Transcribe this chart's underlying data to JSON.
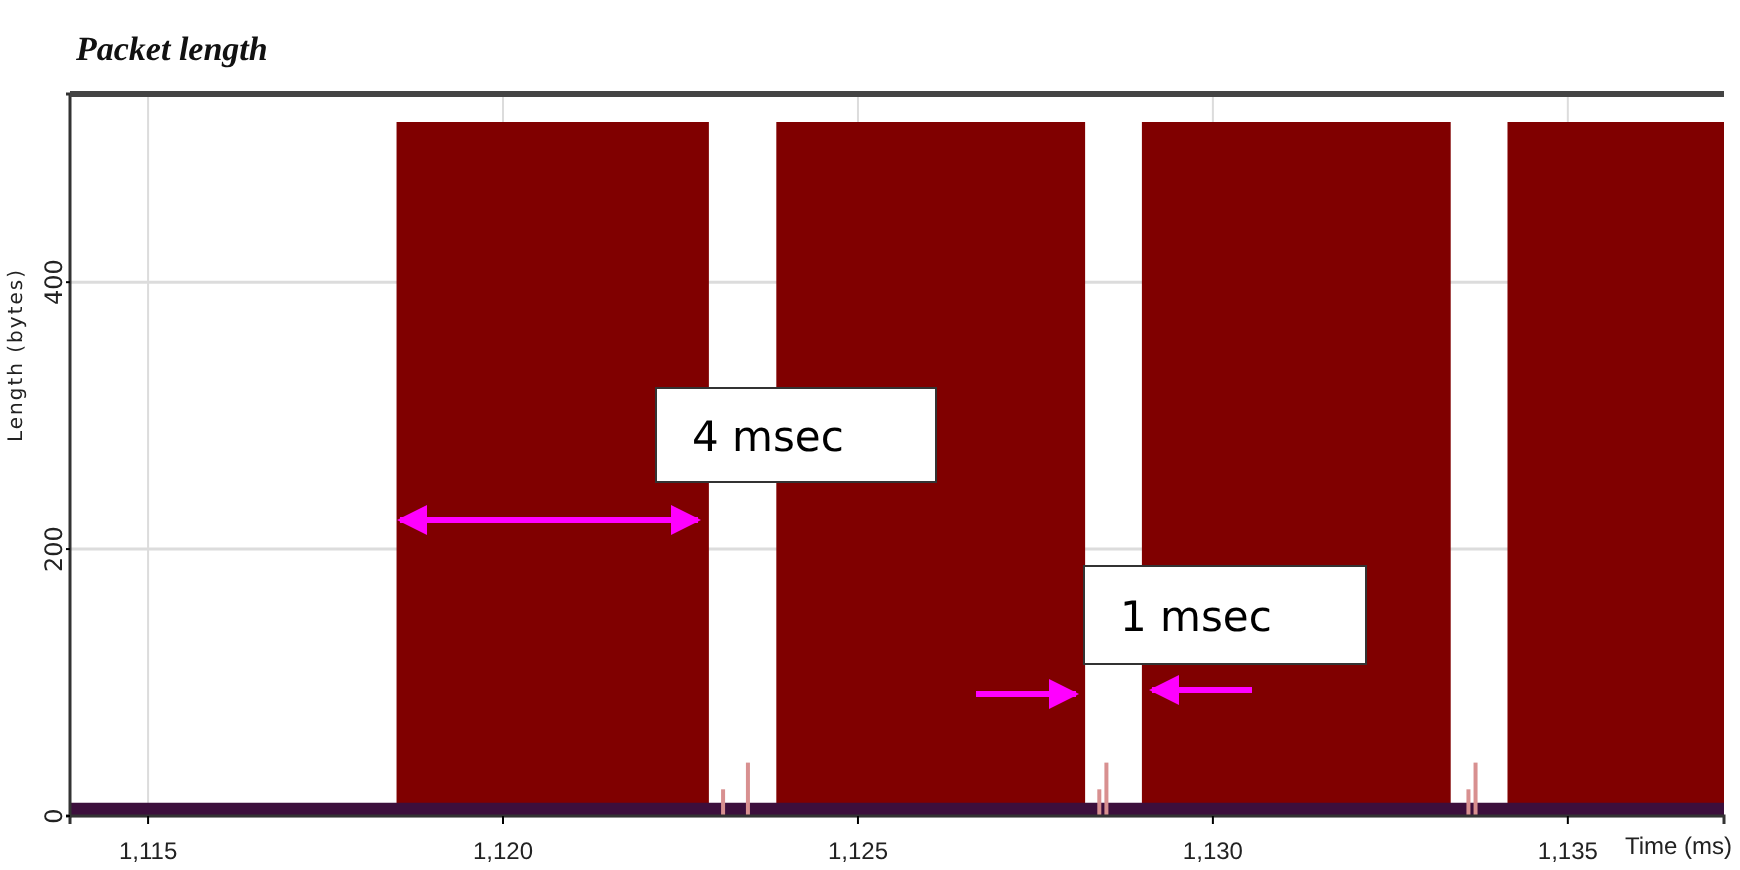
{
  "chart_data": {
    "type": "area",
    "title": "Packet length",
    "xlabel": "Time (ms)",
    "ylabel": "Length (bytes)",
    "xlim": [
      1113.9,
      1137.2
    ],
    "xticks": [
      {
        "value": 1115,
        "label": "1,115"
      },
      {
        "value": 1120,
        "label": "1,120"
      },
      {
        "value": 1125,
        "label": "1,125"
      },
      {
        "value": 1130,
        "label": "1,130"
      },
      {
        "value": 1135,
        "label": "1,135"
      }
    ],
    "ylim": [
      0,
      541
    ],
    "yticks": [
      0,
      200,
      400
    ],
    "grid": true,
    "series": [
      {
        "color": "#800000",
        "x": [
          1113.9,
          1118.5,
          1118.5,
          1122.9,
          1122.9,
          1123.85,
          1123.85,
          1128.2,
          1128.2,
          1129.0,
          1129.0,
          1133.35,
          1133.35,
          1134.15,
          1134.15,
          1137.2
        ],
        "values": [
          0,
          0,
          520,
          520,
          0,
          0,
          520,
          520,
          0,
          0,
          520,
          520,
          0,
          0,
          520,
          520
        ]
      },
      {
        "color": "#3c0f3c",
        "x": [
          1113.9,
          1137.2
        ],
        "values": [
          10,
          10
        ]
      },
      {
        "type": "bar",
        "color": "#d89090",
        "x": [
          1123.1,
          1123.45,
          1128.4,
          1128.5,
          1133.6,
          1133.7
        ],
        "values": [
          20,
          40,
          20,
          40,
          20,
          40
        ]
      }
    ],
    "annotations": [
      "4 msec",
      "1 msec"
    ]
  }
}
